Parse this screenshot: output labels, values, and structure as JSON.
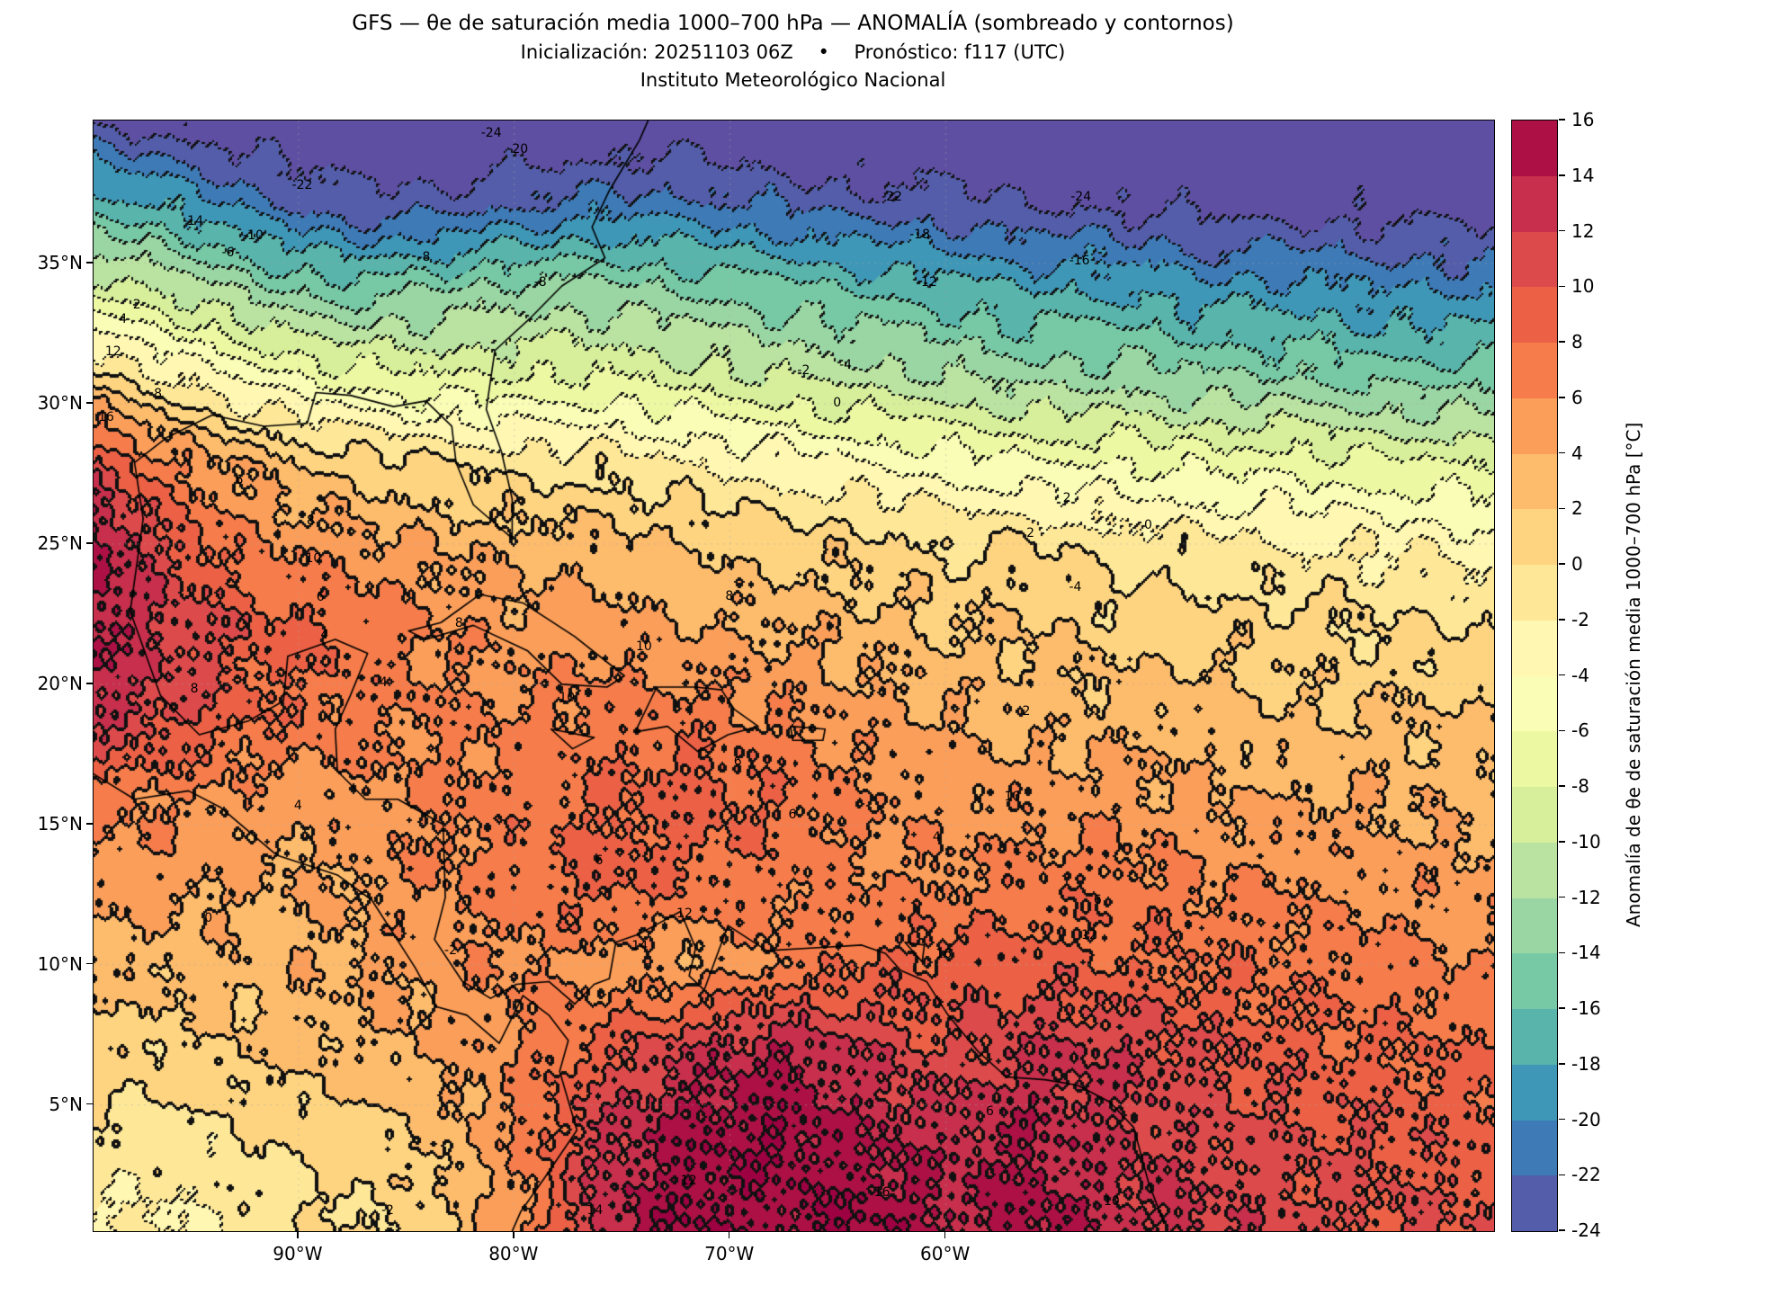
{
  "header": {
    "title_line1": "GFS — θe de saturación media 1000–700 hPa — ANOMALÍA (sombreado y contornos)",
    "title_line2": "Inicialización: 20251103 06Z  •  Pronóstico: f117 (UTC)",
    "title_line3": "Instituto Meteorológico Nacional"
  },
  "chart_data": {
    "type": "heatmap",
    "subtype": "filled_contour_map",
    "title": "GFS — θe de saturación media 1000–700 hPa — ANOMALÍA (sombreado y contornos)",
    "subtitle": "Inicialización: 20251103 06Z • Pronóstico: f117 (UTC)",
    "institution": "Instituto Meteorológico Nacional",
    "extent": {
      "lon_min": -99.5,
      "lon_max": -34.6,
      "lat_min": 0.5,
      "lat_max": 40.1
    },
    "x_ticks": [
      {
        "lon": -90,
        "label": "90°W"
      },
      {
        "lon": -80,
        "label": "80°W"
      },
      {
        "lon": -70,
        "label": "70°W"
      },
      {
        "lon": -60,
        "label": "60°W"
      }
    ],
    "y_ticks": [
      {
        "lat": 35,
        "label": "35°N"
      },
      {
        "lat": 30,
        "label": "30°N"
      },
      {
        "lat": 25,
        "label": "25°N"
      },
      {
        "lat": 20,
        "label": "20°N"
      },
      {
        "lat": 15,
        "label": "15°N"
      },
      {
        "lat": 10,
        "label": "10°N"
      },
      {
        "lat": 5,
        "label": "5°N"
      }
    ],
    "levels": {
      "min": -24,
      "max": 16,
      "step": 2
    },
    "contour_style": {
      "positive": "solid",
      "negative": "dotted",
      "zero_level": 0
    },
    "colorbar": {
      "label": "Anomalía de θe de saturación media 1000–700 hPa [°C]",
      "tick_values": [
        16,
        14,
        12,
        10,
        8,
        6,
        4,
        2,
        0,
        -2,
        -4,
        -6,
        -8,
        -10,
        -12,
        -14,
        -16,
        -18,
        -20,
        -22,
        -24
      ]
    },
    "colors": {
      "bins": [
        "#535DA9",
        "#3D7AB6",
        "#3F97B7",
        "#59B4AB",
        "#77C9A5",
        "#9AD6A4",
        "#BAE3A1",
        "#D7EF9B",
        "#EDF8A3",
        "#F9FDB5",
        "#FFF7B2",
        "#FEE898",
        "#FED480",
        "#FDBB6C",
        "#FB9E5A",
        "#F67D4B",
        "#EC6146",
        "#DD4A4C",
        "#C72F4C",
        "#AC1045"
      ],
      "under": "#5E4FA2",
      "over": "#9E0142",
      "contour_line": "#111111",
      "grid_line": "#aaaaaa",
      "coast_line": "#000000"
    },
    "grid": {
      "lons": [
        -100,
        -96,
        -92,
        -88,
        -84,
        -80,
        -76,
        -72,
        -68,
        -64,
        -60,
        -56,
        -52,
        -48,
        -44,
        -40,
        -36
      ],
      "lats": [
        40,
        37,
        34,
        31,
        28,
        25,
        22,
        19,
        16,
        13,
        10,
        7,
        4,
        1
      ],
      "values": [
        [
          -24,
          -25,
          -26,
          -27,
          -27,
          -27,
          -26,
          -26,
          -27,
          -27,
          -27,
          -27,
          -27,
          -27,
          -27,
          -27,
          -27
        ],
        [
          -16,
          -18,
          -21,
          -23,
          -23,
          -22,
          -21,
          -21,
          -22,
          -23,
          -23,
          -24,
          -24,
          -25,
          -25,
          -25,
          -25
        ],
        [
          -8,
          -10,
          -13,
          -15,
          -14,
          -13,
          -13,
          -14,
          -15,
          -16,
          -17,
          -18,
          -18,
          -19,
          -19,
          -20,
          -20
        ],
        [
          1,
          -2,
          -5,
          -7,
          -8,
          -8,
          -8,
          -9,
          -10,
          -11,
          -12,
          -13,
          -13,
          -14,
          -14,
          -15,
          -15
        ],
        [
          11,
          6,
          3,
          1,
          0,
          -1,
          -1,
          -2,
          -3,
          -4,
          -5,
          -6,
          -6,
          -7,
          -7,
          -8,
          -8
        ],
        [
          16,
          10,
          6,
          5,
          4,
          3,
          3,
          2,
          1,
          1,
          0,
          0,
          -1,
          -1,
          -2,
          -2,
          -3
        ],
        [
          15,
          12,
          9,
          8,
          6,
          5,
          5,
          4,
          4,
          3,
          2,
          2,
          1,
          1,
          1,
          0,
          0
        ],
        [
          13,
          11,
          8,
          7,
          6,
          6,
          7,
          7,
          6,
          5,
          4,
          3,
          3,
          3,
          2,
          2,
          2
        ],
        [
          7,
          6,
          5,
          5,
          6,
          7,
          8,
          9,
          8,
          6,
          5,
          5,
          5,
          4,
          4,
          4,
          3
        ],
        [
          5,
          5,
          4,
          4,
          6,
          7,
          9,
          8,
          7,
          6,
          6,
          7,
          7,
          6,
          6,
          5,
          5
        ],
        [
          3,
          3,
          3,
          4,
          5,
          6,
          5,
          4,
          6,
          8,
          9,
          9,
          8,
          8,
          7,
          7,
          6
        ],
        [
          1,
          1,
          2,
          3,
          4,
          6,
          9,
          12,
          14,
          12,
          10,
          12,
          12,
          10,
          9,
          8,
          8
        ],
        [
          0,
          -1,
          0,
          1,
          2,
          6,
          12,
          15,
          16,
          14,
          13,
          14,
          12,
          11,
          10,
          10,
          9
        ],
        [
          -2,
          -2,
          -1,
          0,
          1,
          5,
          13,
          16,
          15,
          16,
          14,
          15,
          13,
          12,
          11,
          10,
          10
        ]
      ]
    },
    "coastlines": [
      [
        [
          -97.2,
          25.9
        ],
        [
          -97.6,
          27.9
        ],
        [
          -96.1,
          28.8
        ],
        [
          -94.0,
          29.6
        ],
        [
          -91.6,
          29.2
        ],
        [
          -89.6,
          29.3
        ],
        [
          -89.2,
          30.4
        ],
        [
          -87.6,
          30.3
        ],
        [
          -85.6,
          29.9
        ],
        [
          -84.1,
          30.1
        ],
        [
          -82.9,
          29.2
        ],
        [
          -82.7,
          27.9
        ],
        [
          -81.9,
          26.4
        ],
        [
          -80.1,
          25.2
        ],
        [
          -80.1,
          26.6
        ],
        [
          -80.6,
          28.3
        ],
        [
          -81.3,
          29.8
        ],
        [
          -80.9,
          31.9
        ],
        [
          -79.2,
          33.1
        ],
        [
          -77.8,
          34.2
        ],
        [
          -75.8,
          35.2
        ],
        [
          -76.4,
          36.3
        ],
        [
          -75.6,
          37.6
        ],
        [
          -74.2,
          39.4
        ],
        [
          -73.8,
          40.1
        ]
      ],
      [
        [
          -97.2,
          25.9
        ],
        [
          -97.8,
          22.6
        ],
        [
          -96.4,
          19.6
        ],
        [
          -94.6,
          18.2
        ],
        [
          -92.3,
          18.7
        ],
        [
          -90.7,
          19.4
        ],
        [
          -90.5,
          21.0
        ],
        [
          -88.3,
          21.6
        ],
        [
          -86.8,
          21.1
        ],
        [
          -87.6,
          19.6
        ],
        [
          -88.3,
          18.4
        ],
        [
          -88.2,
          16.9
        ],
        [
          -86.9,
          15.9
        ],
        [
          -85.4,
          15.9
        ],
        [
          -83.3,
          15.0
        ],
        [
          -83.2,
          12.4
        ],
        [
          -83.7,
          10.9
        ],
        [
          -82.4,
          9.4
        ],
        [
          -81.1,
          8.8
        ],
        [
          -79.9,
          9.3
        ],
        [
          -78.4,
          9.4
        ],
        [
          -77.2,
          8.6
        ]
      ],
      [
        [
          -99.5,
          16.8
        ],
        [
          -97.6,
          15.9
        ],
        [
          -95.1,
          16.2
        ],
        [
          -93.6,
          15.6
        ],
        [
          -91.0,
          13.9
        ],
        [
          -88.2,
          13.2
        ],
        [
          -86.6,
          12.3
        ],
        [
          -85.6,
          11.1
        ],
        [
          -84.6,
          9.9
        ],
        [
          -83.6,
          8.5
        ],
        [
          -82.2,
          8.2
        ],
        [
          -80.7,
          7.2
        ],
        [
          -79.6,
          8.9
        ],
        [
          -78.4,
          8.2
        ],
        [
          -77.5,
          7.3
        ],
        [
          -77.9,
          6.2
        ],
        [
          -77.1,
          4.1
        ],
        [
          -78.6,
          2.4
        ],
        [
          -79.7,
          1.2
        ],
        [
          -80.1,
          0.5
        ]
      ],
      [
        [
          -77.2,
          8.6
        ],
        [
          -76.3,
          9.3
        ],
        [
          -75.6,
          9.5
        ],
        [
          -75.3,
          10.8
        ],
        [
          -74.2,
          11.1
        ],
        [
          -72.3,
          11.9
        ],
        [
          -71.6,
          10.6
        ],
        [
          -71.9,
          9.6
        ],
        [
          -71.2,
          9.1
        ],
        [
          -70.1,
          11.4
        ],
        [
          -68.3,
          10.5
        ],
        [
          -66.1,
          10.6
        ],
        [
          -63.9,
          10.7
        ],
        [
          -62.8,
          10.4
        ],
        [
          -62.1,
          9.8
        ],
        [
          -60.9,
          9.4
        ],
        [
          -59.9,
          8.2
        ],
        [
          -58.5,
          6.9
        ],
        [
          -57.2,
          6.0
        ],
        [
          -55.4,
          5.9
        ],
        [
          -53.9,
          5.7
        ],
        [
          -52.4,
          5.1
        ],
        [
          -51.3,
          4.2
        ],
        [
          -50.6,
          2.2
        ],
        [
          -49.9,
          0.8
        ]
      ],
      [
        [
          -84.9,
          21.9
        ],
        [
          -83.4,
          22.2
        ],
        [
          -81.6,
          23.2
        ],
        [
          -79.6,
          22.9
        ],
        [
          -77.2,
          21.7
        ],
        [
          -74.9,
          20.3
        ],
        [
          -75.7,
          19.9
        ],
        [
          -77.8,
          20.0
        ],
        [
          -79.4,
          21.2
        ],
        [
          -81.9,
          22.1
        ],
        [
          -84.1,
          21.6
        ],
        [
          -84.9,
          21.9
        ]
      ],
      [
        [
          -73.4,
          19.9
        ],
        [
          -71.6,
          19.9
        ],
        [
          -70.4,
          19.8
        ],
        [
          -69.8,
          19.1
        ],
        [
          -68.7,
          18.5
        ],
        [
          -70.1,
          18.2
        ],
        [
          -71.5,
          17.6
        ],
        [
          -72.9,
          18.5
        ],
        [
          -74.4,
          18.3
        ],
        [
          -73.4,
          19.9
        ]
      ],
      [
        [
          -78.3,
          18.4
        ],
        [
          -76.3,
          18.1
        ],
        [
          -77.3,
          17.7
        ],
        [
          -78.3,
          18.4
        ]
      ],
      [
        [
          -67.2,
          18.5
        ],
        [
          -65.6,
          18.4
        ],
        [
          -65.7,
          18.0
        ],
        [
          -67.1,
          18.0
        ],
        [
          -67.2,
          18.5
        ]
      ],
      [
        [
          -61.9,
          10.8
        ],
        [
          -61.0,
          10.7
        ],
        [
          -61.1,
          10.1
        ],
        [
          -61.9,
          10.8
        ]
      ]
    ],
    "contour_labels": [
      {
        "t": "-22",
        "x": 14.9,
        "y": 5.8
      },
      {
        "t": "-24",
        "x": 28.4,
        "y": 1.1
      },
      {
        "t": "-20",
        "x": 30.3,
        "y": 2.6
      },
      {
        "t": "-22",
        "x": 57.0,
        "y": 6.9
      },
      {
        "t": "-24",
        "x": 70.5,
        "y": 6.9
      },
      {
        "t": "-14",
        "x": 7.1,
        "y": 9.1
      },
      {
        "t": "-10",
        "x": 11.4,
        "y": 10.4
      },
      {
        "t": "-6",
        "x": 9.6,
        "y": 11.9
      },
      {
        "t": "-8",
        "x": 23.6,
        "y": 12.3
      },
      {
        "t": "-18",
        "x": 59.0,
        "y": 10.3
      },
      {
        "t": "-16",
        "x": 70.4,
        "y": 12.6
      },
      {
        "t": "-12",
        "x": 59.5,
        "y": 14.6
      },
      {
        "t": "-8",
        "x": 31.9,
        "y": 14.6
      },
      {
        "t": "-4",
        "x": 53.7,
        "y": 22.0
      },
      {
        "t": "-2",
        "x": 50.7,
        "y": 22.5
      },
      {
        "t": "0",
        "x": 53.1,
        "y": 25.4
      },
      {
        "t": "2",
        "x": 3.1,
        "y": 16.6
      },
      {
        "t": "4",
        "x": 2.1,
        "y": 17.9
      },
      {
        "t": "12",
        "x": 1.4,
        "y": 20.8
      },
      {
        "t": "16",
        "x": 0.9,
        "y": 26.7
      },
      {
        "t": "8",
        "x": 4.6,
        "y": 24.6
      },
      {
        "t": "6",
        "x": 10.4,
        "y": 32.4
      },
      {
        "t": "8",
        "x": 15.5,
        "y": 36.0
      },
      {
        "t": "10",
        "x": 15.7,
        "y": 39.4
      },
      {
        "t": "2",
        "x": 69.5,
        "y": 34.0
      },
      {
        "t": "0",
        "x": 75.3,
        "y": 36.4
      },
      {
        "t": "2",
        "x": 66.9,
        "y": 37.2
      },
      {
        "t": "-4",
        "x": 70.1,
        "y": 42.0
      },
      {
        "t": "8",
        "x": 45.4,
        "y": 42.8
      },
      {
        "t": "8",
        "x": 26.1,
        "y": 45.3
      },
      {
        "t": "10",
        "x": 39.3,
        "y": 47.4
      },
      {
        "t": "6",
        "x": 16.2,
        "y": 42.9
      },
      {
        "t": "4",
        "x": 16.5,
        "y": 46.3
      },
      {
        "t": "8",
        "x": 7.2,
        "y": 51.2
      },
      {
        "t": "10",
        "x": 33.8,
        "y": 52.0
      },
      {
        "t": "4",
        "x": 20.7,
        "y": 50.6
      },
      {
        "t": "4",
        "x": 14.6,
        "y": 61.7
      },
      {
        "t": "6",
        "x": 36.1,
        "y": 66.6
      },
      {
        "t": "6",
        "x": 46.0,
        "y": 57.7
      },
      {
        "t": "6",
        "x": 49.9,
        "y": 62.5
      },
      {
        "t": "10",
        "x": 65.6,
        "y": 60.9
      },
      {
        "t": "2",
        "x": 66.6,
        "y": 53.2
      },
      {
        "t": "12",
        "x": 42.2,
        "y": 71.4
      },
      {
        "t": "4",
        "x": 60.2,
        "y": 64.5
      },
      {
        "t": "6",
        "x": 71.7,
        "y": 70.2
      },
      {
        "t": "16",
        "x": 60.7,
        "y": 75.1
      },
      {
        "t": "12",
        "x": 71.1,
        "y": 73.4
      },
      {
        "t": "0",
        "x": 8.2,
        "y": 71.8
      },
      {
        "t": "-2",
        "x": 25.5,
        "y": 74.7
      },
      {
        "t": "14",
        "x": 39.0,
        "y": 74.3
      },
      {
        "t": "-2",
        "x": 21.0,
        "y": 98.1
      },
      {
        "t": "6",
        "x": 54.1,
        "y": 85.6
      },
      {
        "t": "12",
        "x": 42.5,
        "y": 95.5
      },
      {
        "t": "14",
        "x": 35.8,
        "y": 98.1
      },
      {
        "t": "10",
        "x": 72.7,
        "y": 97.3
      },
      {
        "t": "16",
        "x": 56.3,
        "y": 96.5
      },
      {
        "t": "6",
        "x": 64.0,
        "y": 89.2
      }
    ]
  }
}
